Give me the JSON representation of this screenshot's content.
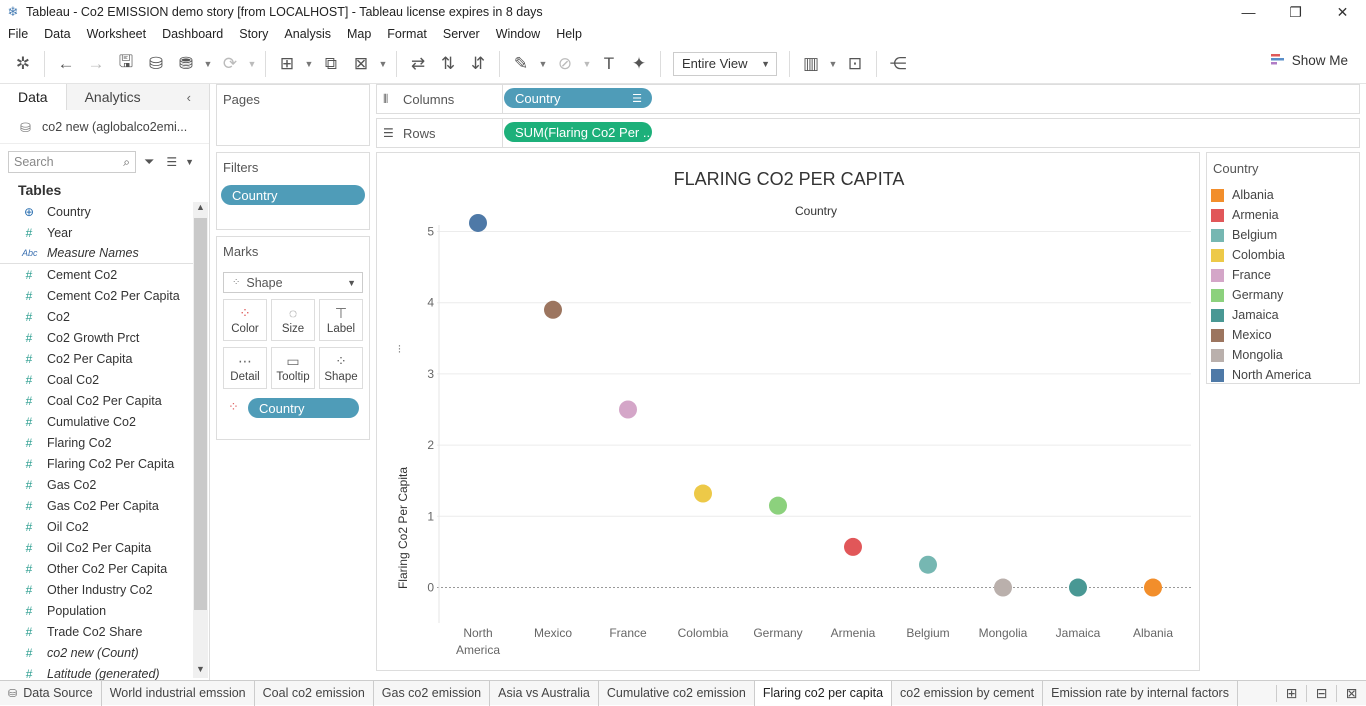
{
  "window": {
    "title": "Tableau - Co2 EMISSION demo story [from LOCALHOST] - Tableau license expires in 8 days"
  },
  "menu": [
    "File",
    "Data",
    "Worksheet",
    "Dashboard",
    "Story",
    "Analysis",
    "Map",
    "Format",
    "Server",
    "Window",
    "Help"
  ],
  "toolbar": {
    "fit_label": "Entire View",
    "show_me_label": "Show Me"
  },
  "left_pane": {
    "tab_data": "Data",
    "tab_analytics": "Analytics",
    "datasource": "co2 new (aglobalco2emi...",
    "search_placeholder": "Search",
    "tables_heading": "Tables",
    "fields": [
      {
        "name": "Country",
        "type": "geo"
      },
      {
        "name": "Year",
        "type": "#"
      },
      {
        "name": "Measure Names",
        "type": "Abc"
      },
      {
        "name": "Cement Co2",
        "type": "#"
      },
      {
        "name": "Cement Co2 Per Capita",
        "type": "#"
      },
      {
        "name": "Co2",
        "type": "#"
      },
      {
        "name": "Co2 Growth Prct",
        "type": "#"
      },
      {
        "name": "Co2 Per Capita",
        "type": "#"
      },
      {
        "name": "Coal Co2",
        "type": "#"
      },
      {
        "name": "Coal Co2 Per Capita",
        "type": "#"
      },
      {
        "name": "Cumulative Co2",
        "type": "#"
      },
      {
        "name": "Flaring Co2",
        "type": "#"
      },
      {
        "name": "Flaring Co2 Per Capita",
        "type": "#"
      },
      {
        "name": "Gas Co2",
        "type": "#"
      },
      {
        "name": "Gas Co2 Per Capita",
        "type": "#"
      },
      {
        "name": "Oil Co2",
        "type": "#"
      },
      {
        "name": "Oil Co2 Per Capita",
        "type": "#"
      },
      {
        "name": "Other Co2 Per Capita",
        "type": "#"
      },
      {
        "name": "Other Industry Co2",
        "type": "#"
      },
      {
        "name": "Population",
        "type": "#"
      },
      {
        "name": "Trade Co2 Share",
        "type": "#"
      },
      {
        "name": "co2 new (Count)",
        "type": "#"
      },
      {
        "name": "Latitude (generated)",
        "type": "#"
      }
    ]
  },
  "shelves": {
    "pages_label": "Pages",
    "filters_label": "Filters",
    "filter_pill": "Country",
    "marks_label": "Marks",
    "mark_type": "Shape",
    "mark_buttons": [
      "Color",
      "Size",
      "Label",
      "Detail",
      "Tooltip",
      "Shape"
    ],
    "marks_pill": "Country",
    "columns_label": "Columns",
    "columns_pill": "Country",
    "rows_label": "Rows",
    "rows_pill": "SUM(Flaring Co2 Per .."
  },
  "legend": {
    "title": "Country",
    "items": [
      {
        "label": "Albania",
        "color": "#f28e2b"
      },
      {
        "label": "Armenia",
        "color": "#e15759"
      },
      {
        "label": "Belgium",
        "color": "#76b7b2"
      },
      {
        "label": "Colombia",
        "color": "#edc948"
      },
      {
        "label": "France",
        "color": "#d4a6c8"
      },
      {
        "label": "Germany",
        "color": "#8cd17d"
      },
      {
        "label": "Jamaica",
        "color": "#499894"
      },
      {
        "label": "Mexico",
        "color": "#9c755f"
      },
      {
        "label": "Mongolia",
        "color": "#bab0ac"
      },
      {
        "label": "North America",
        "color": "#4e79a7"
      }
    ]
  },
  "chart_data": {
    "type": "scatter",
    "title": "FLARING CO2 PER CAPITA",
    "header": "Country",
    "ylabel": "Flaring Co2 Per Capita",
    "ylim": [
      -0.4,
      5.4
    ],
    "yticks": [
      0,
      1,
      2,
      3,
      4,
      5
    ],
    "categories": [
      "North America",
      "Mexico",
      "France",
      "Colombia",
      "Germany",
      "Armenia",
      "Belgium",
      "Mongolia",
      "Jamaica",
      "Albania"
    ],
    "category_labels": [
      [
        "North",
        "America"
      ],
      [
        "Mexico"
      ],
      [
        "France"
      ],
      [
        "Colombia"
      ],
      [
        "Germany"
      ],
      [
        "Armenia"
      ],
      [
        "Belgium"
      ],
      [
        "Mongolia"
      ],
      [
        "Jamaica"
      ],
      [
        "Albania"
      ]
    ],
    "values": [
      5.12,
      3.9,
      2.5,
      1.32,
      1.15,
      0.57,
      0.32,
      0.0,
      0.0,
      0.0
    ],
    "colors": [
      "#4e79a7",
      "#9c755f",
      "#d4a6c8",
      "#edc948",
      "#8cd17d",
      "#e15759",
      "#76b7b2",
      "#bab0ac",
      "#499894",
      "#f28e2b"
    ],
    "grid": true
  },
  "sheet_tabs": {
    "data_source": "Data Source",
    "tabs": [
      "World industrial emssion",
      "Coal co2 emission",
      "Gas co2 emission",
      "Asia vs Australia",
      "Cumulative co2 emission",
      "Flaring co2 per capita",
      "co2 emission by cement",
      "Emission rate by internal factors"
    ],
    "active": "Flaring co2 per capita"
  }
}
